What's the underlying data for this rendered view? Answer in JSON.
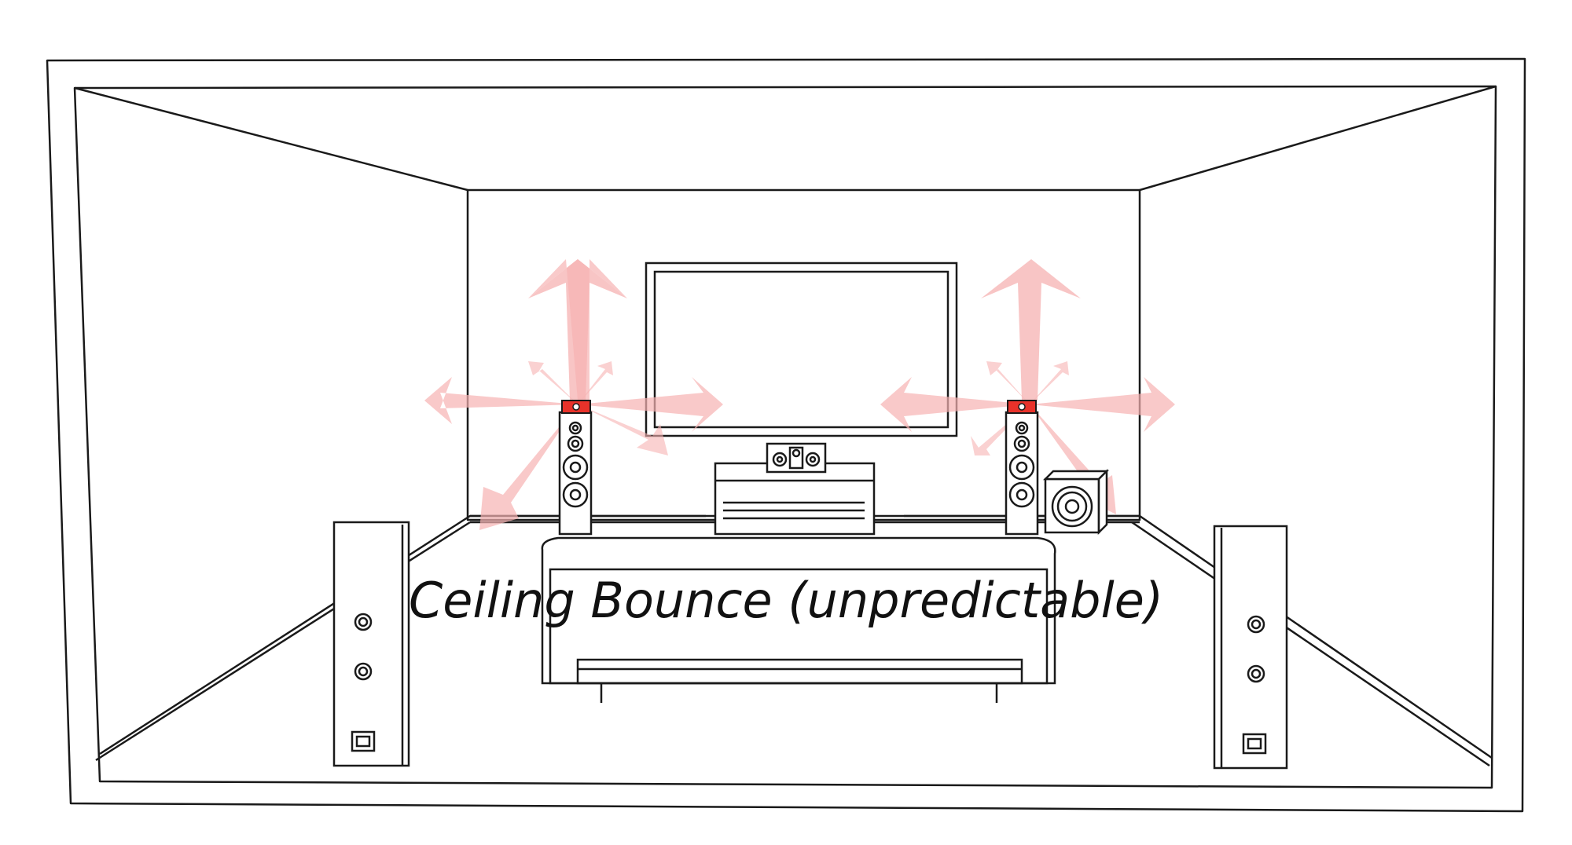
{
  "caption": "Ceiling Bounce (unpredictable)",
  "colors": {
    "line": "#1a1a1a",
    "highlight": "#e8322a",
    "arrow": "#f4a6a6",
    "background": "#ffffff"
  },
  "components": [
    "room-outline",
    "flat-screen-tv",
    "center-channel-speaker",
    "media-console",
    "front-left-tower-speaker",
    "front-right-tower-speaker",
    "upfiring-module-left",
    "upfiring-module-right",
    "subwoofer",
    "sofa",
    "surround-left-speaker",
    "surround-right-speaker"
  ]
}
